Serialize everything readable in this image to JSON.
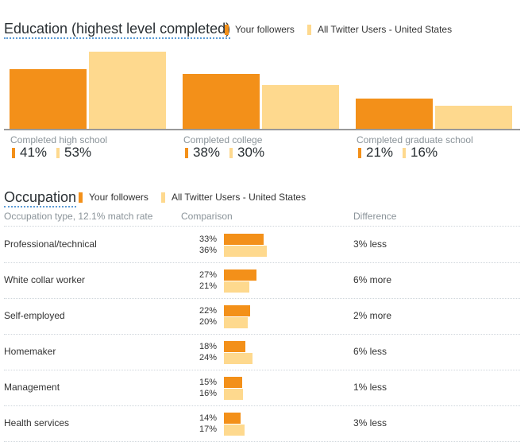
{
  "education": {
    "title": "Education (highest level completed)",
    "legend": {
      "you": "Your followers",
      "all": "All Twitter Users - United States"
    }
  },
  "occupation": {
    "title": "Occupation",
    "legend": {
      "you": "Your followers",
      "all": "All Twitter Users - United States"
    },
    "columns": {
      "type": "Occupation type, 12.1% match rate",
      "comparison": "Comparison",
      "difference": "Difference"
    }
  },
  "colors": {
    "you": "#f39019",
    "all": "#fed98e"
  },
  "chart_data": [
    {
      "type": "bar",
      "title": "Education (highest level completed)",
      "categories": [
        "Completed high school",
        "Completed college",
        "Completed graduate school"
      ],
      "series": [
        {
          "name": "Your followers",
          "values": [
            41,
            38,
            21
          ],
          "labels": [
            "41%",
            "38%",
            "21%"
          ]
        },
        {
          "name": "All Twitter Users - United States",
          "values": [
            53,
            30,
            16
          ],
          "labels": [
            "53%",
            "30%",
            "16%"
          ]
        }
      ],
      "legend": "top",
      "grid": false
    },
    {
      "type": "bar",
      "title": "Occupation",
      "orientation": "horizontal",
      "categories": [
        "Professional/technical",
        "White collar worker",
        "Self-employed",
        "Homemaker",
        "Management",
        "Health services"
      ],
      "series": [
        {
          "name": "Your followers",
          "values": [
            33,
            27,
            22,
            18,
            15,
            14
          ],
          "labels": [
            "33%",
            "27%",
            "22%",
            "18%",
            "15%",
            "14%"
          ]
        },
        {
          "name": "All Twitter Users - United States",
          "values": [
            36,
            21,
            20,
            24,
            16,
            17
          ],
          "labels": [
            "36%",
            "21%",
            "20%",
            "24%",
            "16%",
            "17%"
          ]
        }
      ],
      "difference": [
        "3% less",
        "6% more",
        "2% more",
        "6% less",
        "1% less",
        "3% less"
      ],
      "legend": "top",
      "grid": false
    }
  ]
}
